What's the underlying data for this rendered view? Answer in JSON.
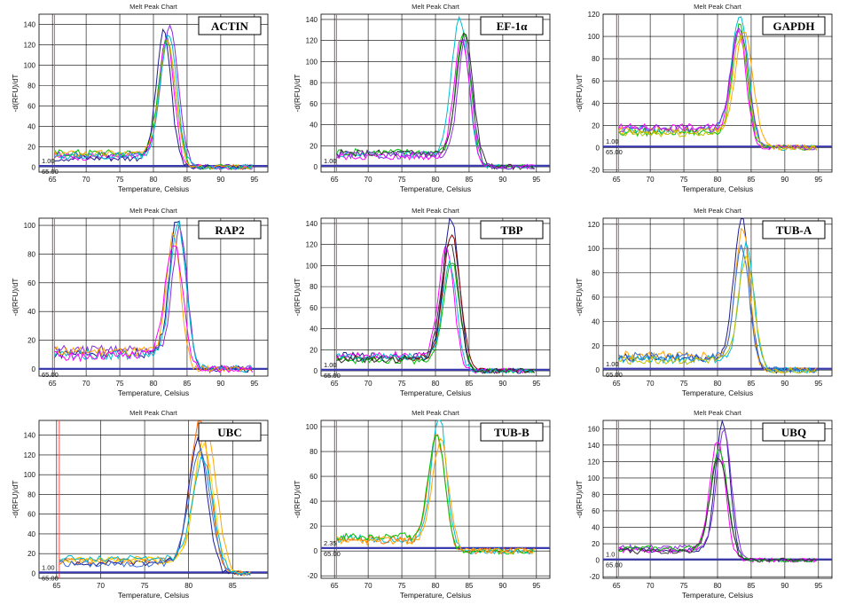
{
  "chart_data": [
    {
      "type": "line",
      "title": "Melt Peak Chart",
      "gene": "ACTIN",
      "xlabel": "Temperature, Celsius",
      "ylabel": "-d(RFU)/dT",
      "xlim": [
        63,
        97
      ],
      "ylim": [
        -5,
        150
      ],
      "xticks": [
        65,
        70,
        75,
        80,
        85,
        90,
        95
      ],
      "yticks": [
        0,
        20,
        40,
        60,
        80,
        100,
        120,
        140
      ],
      "threshold": 1.0,
      "threshold_label": "1.00",
      "start_label": "65.00",
      "peak_x": 82,
      "series": [
        {
          "peak": 132,
          "baseline": 12,
          "color": "#8a2be2"
        },
        {
          "peak": 122,
          "baseline": 10,
          "color": "#ff00ff"
        },
        {
          "peak": 118,
          "baseline": 14,
          "color": "#00c000"
        },
        {
          "peak": 128,
          "baseline": 9,
          "color": "#1e1e90"
        },
        {
          "peak": 120,
          "baseline": 13,
          "color": "#ffa500"
        },
        {
          "peak": 125,
          "baseline": 11,
          "color": "#00bcd4"
        }
      ]
    },
    {
      "type": "line",
      "title": "Melt Peak Chart",
      "gene": "EF-1α",
      "xlabel": "Temperature, Celsius",
      "ylabel": "-d(RFU)/dT",
      "xlim": [
        63,
        97
      ],
      "ylim": [
        -5,
        145
      ],
      "xticks": [
        65,
        70,
        75,
        80,
        85,
        90,
        95
      ],
      "yticks": [
        0,
        20,
        40,
        60,
        80,
        100,
        120,
        140
      ],
      "threshold": 1.0,
      "threshold_label": "1.00",
      "start_label": "",
      "peak_x": 84,
      "series": [
        {
          "peak": 136,
          "baseline": 12,
          "color": "#00bcd4"
        },
        {
          "peak": 122,
          "baseline": 14,
          "color": "#00c000"
        },
        {
          "peak": 118,
          "baseline": 10,
          "color": "#ff00ff"
        },
        {
          "peak": 120,
          "baseline": 13,
          "color": "#333333"
        },
        {
          "peak": 115,
          "baseline": 11,
          "color": "#8a2be2"
        }
      ]
    },
    {
      "type": "line",
      "title": "Melt Peak Chart",
      "gene": "GAPDH",
      "xlabel": "Temperature, Celsius",
      "ylabel": "-d(RFU)/dT",
      "xlim": [
        63,
        97
      ],
      "ylim": [
        -22,
        120
      ],
      "xticks": [
        65,
        70,
        75,
        80,
        85,
        90,
        95
      ],
      "yticks": [
        -20,
        0,
        20,
        40,
        60,
        80,
        100,
        120
      ],
      "threshold": 1.0,
      "threshold_label": "1.00",
      "start_label": "65.00",
      "peak_x": 83.5,
      "series": [
        {
          "peak": 112,
          "baseline": 16,
          "color": "#00bcd4"
        },
        {
          "peak": 102,
          "baseline": 14,
          "color": "#00c000"
        },
        {
          "peak": 98,
          "baseline": 18,
          "color": "#ff00ff"
        },
        {
          "peak": 96,
          "baseline": 15,
          "color": "#ffa500"
        },
        {
          "peak": 100,
          "baseline": 17,
          "color": "#8a2be2"
        },
        {
          "peak": 94,
          "baseline": 13,
          "color": "#c0c000"
        }
      ]
    },
    {
      "type": "line",
      "title": "Melt Peak Chart",
      "gene": "RAP2",
      "xlabel": "Temperature, Celsius",
      "ylabel": "-d(RFU)/dT",
      "xlim": [
        63,
        97
      ],
      "ylim": [
        -5,
        105
      ],
      "xticks": [
        65,
        70,
        75,
        80,
        85,
        90,
        95
      ],
      "yticks": [
        0,
        20,
        40,
        60,
        80,
        100
      ],
      "threshold": 0,
      "threshold_label": "",
      "start_label": "65.00",
      "peak_x": 83.5,
      "series": [
        {
          "peak": 100,
          "baseline": 11,
          "color": "#1e1e90"
        },
        {
          "peak": 92,
          "baseline": 13,
          "color": "#8a2be2"
        },
        {
          "peak": 96,
          "baseline": 10,
          "color": "#00bcd4"
        },
        {
          "peak": 88,
          "baseline": 12,
          "color": "#ffa500"
        },
        {
          "peak": 84,
          "baseline": 9,
          "color": "#ff00ff"
        }
      ]
    },
    {
      "type": "line",
      "title": "Melt Peak Chart",
      "gene": "TBP",
      "xlabel": "Temperature, Celsius",
      "ylabel": "-d(RFU)/dT",
      "xlim": [
        63,
        97
      ],
      "ylim": [
        -5,
        145
      ],
      "xticks": [
        65,
        70,
        75,
        80,
        85,
        90,
        95
      ],
      "yticks": [
        0,
        20,
        40,
        60,
        80,
        100,
        120,
        140
      ],
      "threshold": 1.0,
      "threshold_label": "1.00",
      "start_label": "65.00",
      "peak_x": 82,
      "series": [
        {
          "peak": 138,
          "baseline": 14,
          "color": "#1e1e90"
        },
        {
          "peak": 125,
          "baseline": 12,
          "color": "#8b0000"
        },
        {
          "peak": 110,
          "baseline": 15,
          "color": "#ff00ff"
        },
        {
          "peak": 100,
          "baseline": 10,
          "color": "#00c000"
        },
        {
          "peak": 95,
          "baseline": 13,
          "color": "#00bcd4"
        },
        {
          "peak": 118,
          "baseline": 11,
          "color": "#333333"
        }
      ]
    },
    {
      "type": "line",
      "title": "Melt Peak Chart",
      "gene": "TUB-A",
      "xlabel": "Temperature, Celsius",
      "ylabel": "-d(RFU)/dT",
      "xlim": [
        63,
        97
      ],
      "ylim": [
        -5,
        125
      ],
      "xticks": [
        65,
        70,
        75,
        80,
        85,
        90,
        95
      ],
      "yticks": [
        0,
        20,
        40,
        60,
        80,
        100,
        120
      ],
      "threshold": 1.0,
      "threshold_label": "1.00",
      "start_label": "65.00",
      "peak_x": 84,
      "series": [
        {
          "peak": 120,
          "baseline": 10,
          "color": "#1e1e90"
        },
        {
          "peak": 110,
          "baseline": 12,
          "color": "#ffa500"
        },
        {
          "peak": 100,
          "baseline": 9,
          "color": "#00bcd4"
        },
        {
          "peak": 95,
          "baseline": 11,
          "color": "#3a6fd8"
        },
        {
          "peak": 90,
          "baseline": 8,
          "color": "#c0c000"
        }
      ]
    },
    {
      "type": "line",
      "title": "Melt Peak Chart",
      "gene": "UBC",
      "xlabel": "Temperature, Celsius",
      "ylabel": "-d(RFU)/dT",
      "xlim": [
        63,
        89
      ],
      "ylim": [
        -5,
        155
      ],
      "xticks": [
        65,
        70,
        75,
        80,
        85
      ],
      "yticks": [
        0,
        20,
        40,
        60,
        80,
        100,
        120,
        140
      ],
      "threshold": 1.0,
      "threshold_label": "1.00",
      "start_label": "65.00",
      "peak_x": 81.5,
      "series": [
        {
          "peak": 150,
          "baseline": 12,
          "color": "#ff6600"
        },
        {
          "peak": 140,
          "baseline": 14,
          "color": "#ffa500"
        },
        {
          "peak": 130,
          "baseline": 11,
          "color": "#1e1e90"
        },
        {
          "peak": 125,
          "baseline": 13,
          "color": "#ffd700"
        },
        {
          "peak": 120,
          "baseline": 10,
          "color": "#3a6fd8"
        },
        {
          "peak": 110,
          "baseline": 15,
          "color": "#00bcd4"
        }
      ]
    },
    {
      "type": "line",
      "title": "Melt Peak Chart",
      "gene": "TUB-B",
      "xlabel": "Temperature, Celsius",
      "ylabel": "-d(RFU)/dT",
      "xlim": [
        63,
        97
      ],
      "ylim": [
        -22,
        105
      ],
      "xticks": [
        65,
        70,
        75,
        80,
        85,
        90,
        95
      ],
      "yticks": [
        -20,
        0,
        20,
        40,
        60,
        80,
        100
      ],
      "threshold": 2.35,
      "threshold_label": "2.35",
      "start_label": "65.00",
      "peak_x": 80.5,
      "series": [
        {
          "peak": 105,
          "baseline": 10,
          "color": "#00bcd4"
        },
        {
          "peak": 90,
          "baseline": 9,
          "color": "#ff6600"
        },
        {
          "peak": 88,
          "baseline": 11,
          "color": "#00c000"
        },
        {
          "peak": 85,
          "baseline": 8,
          "color": "#ffa500"
        }
      ]
    },
    {
      "type": "line",
      "title": "Melt Peak Chart",
      "gene": "UBQ",
      "xlabel": "Temperature, Celsius",
      "ylabel": "-d(RFU)/dT",
      "xlim": [
        63,
        97
      ],
      "ylim": [
        -22,
        170
      ],
      "xticks": [
        65,
        70,
        75,
        80,
        85,
        90,
        95
      ],
      "yticks": [
        -20,
        0,
        20,
        40,
        60,
        80,
        100,
        120,
        140,
        160
      ],
      "threshold": 1.0,
      "threshold_label": "1.0",
      "start_label": "65.00",
      "peak_x": 80.5,
      "series": [
        {
          "peak": 162,
          "baseline": 13,
          "color": "#1e1e90"
        },
        {
          "peak": 150,
          "baseline": 15,
          "color": "#8a2be2"
        },
        {
          "peak": 140,
          "baseline": 12,
          "color": "#ff00ff"
        },
        {
          "peak": 130,
          "baseline": 14,
          "color": "#00c000"
        },
        {
          "peak": 120,
          "baseline": 11,
          "color": "#333333"
        }
      ]
    }
  ],
  "colors": {
    "threshold_line": "#3b3bb0",
    "start_line": "#ff4d4d",
    "grid": "#000000"
  }
}
